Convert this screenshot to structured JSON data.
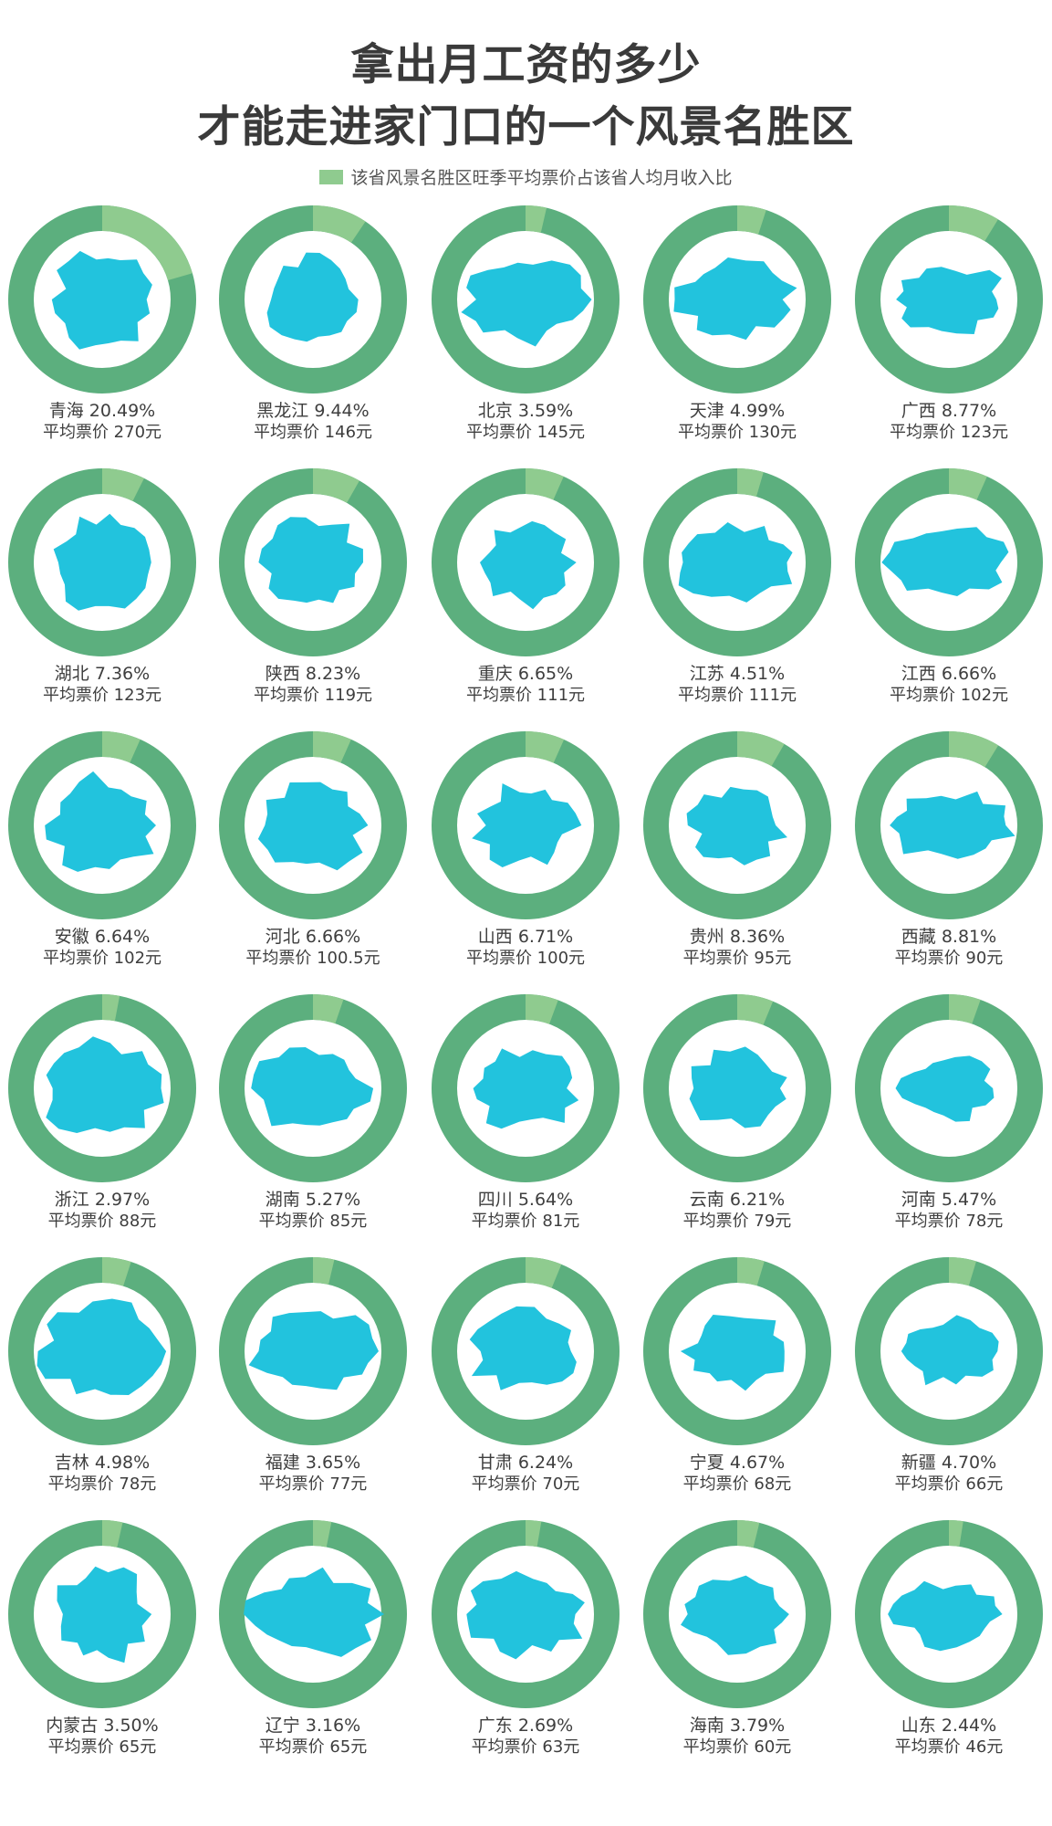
{
  "title_line1": "拿出月工资的多少",
  "title_line2": "才能走进家门口的一个风景名胜区",
  "legend": {
    "label": "该省风景名胜区旺季平均票价占该省人均月收入比",
    "color": "#8fcb8f"
  },
  "colors": {
    "ring": "#5caf7e",
    "highlight": "#8fcb8f",
    "province": "#22c3dd"
  },
  "price_prefix": "平均票价",
  "price_unit": "元",
  "chart_data": {
    "type": "pie",
    "title": "拿出月工资的多少 才能走进家门口的一个风景名胜区",
    "series_name": "该省风景名胜区旺季平均票价占该省人均月收入比",
    "items": [
      {
        "province": "青海",
        "percent_label": "20.49%",
        "percent": 20.49,
        "price": "270"
      },
      {
        "province": "黑龙江",
        "percent_label": "9.44%",
        "percent": 9.44,
        "price": "146"
      },
      {
        "province": "北京",
        "percent_label": "3.59%",
        "percent": 3.59,
        "price": "145"
      },
      {
        "province": "天津",
        "percent_label": "4.99%",
        "percent": 4.99,
        "price": "130"
      },
      {
        "province": "广西",
        "percent_label": "8.77%",
        "percent": 8.77,
        "price": "123"
      },
      {
        "province": "湖北",
        "percent_label": "7.36%",
        "percent": 7.36,
        "price": "123"
      },
      {
        "province": "陕西",
        "percent_label": "8.23%",
        "percent": 8.23,
        "price": "119"
      },
      {
        "province": "重庆",
        "percent_label": "6.65%",
        "percent": 6.65,
        "price": "111"
      },
      {
        "province": "江苏",
        "percent_label": "4.51%",
        "percent": 4.51,
        "price": "111"
      },
      {
        "province": "江西",
        "percent_label": "6.66%",
        "percent": 6.66,
        "price": "102"
      },
      {
        "province": "安徽",
        "percent_label": "6.64%",
        "percent": 6.64,
        "price": "102"
      },
      {
        "province": "河北",
        "percent_label": "6.66%",
        "percent": 6.66,
        "price": "100.5"
      },
      {
        "province": "山西",
        "percent_label": "6.71%",
        "percent": 6.71,
        "price": "100"
      },
      {
        "province": "贵州",
        "percent_label": "8.36%",
        "percent": 8.36,
        "price": "95"
      },
      {
        "province": "西藏",
        "percent_label": "8.81%",
        "percent": 8.81,
        "price": "90"
      },
      {
        "province": "浙江",
        "percent_label": "2.97%",
        "percent": 2.97,
        "price": "88"
      },
      {
        "province": "湖南",
        "percent_label": "5.27%",
        "percent": 5.27,
        "price": "85"
      },
      {
        "province": "四川",
        "percent_label": "5.64%",
        "percent": 5.64,
        "price": "81"
      },
      {
        "province": "云南",
        "percent_label": "6.21%",
        "percent": 6.21,
        "price": "79"
      },
      {
        "province": "河南",
        "percent_label": "5.47%",
        "percent": 5.47,
        "price": "78"
      },
      {
        "province": "吉林",
        "percent_label": "4.98%",
        "percent": 4.98,
        "price": "78"
      },
      {
        "province": "福建",
        "percent_label": "3.65%",
        "percent": 3.65,
        "price": "77"
      },
      {
        "province": "甘肃",
        "percent_label": "6.24%",
        "percent": 6.24,
        "price": "70"
      },
      {
        "province": "宁夏",
        "percent_label": "4.67%",
        "percent": 4.67,
        "price": "68"
      },
      {
        "province": "新疆",
        "percent_label": "4.70%",
        "percent": 4.7,
        "price": "66"
      },
      {
        "province": "内蒙古",
        "percent_label": "3.50%",
        "percent": 3.5,
        "price": "65"
      },
      {
        "province": "辽宁",
        "percent_label": "3.16%",
        "percent": 3.16,
        "price": "65"
      },
      {
        "province": "广东",
        "percent_label": "2.69%",
        "percent": 2.69,
        "price": "63"
      },
      {
        "province": "海南",
        "percent_label": "3.79%",
        "percent": 3.79,
        "price": "60"
      },
      {
        "province": "山东",
        "percent_label": "2.44%",
        "percent": 2.44,
        "price": "46"
      }
    ]
  }
}
